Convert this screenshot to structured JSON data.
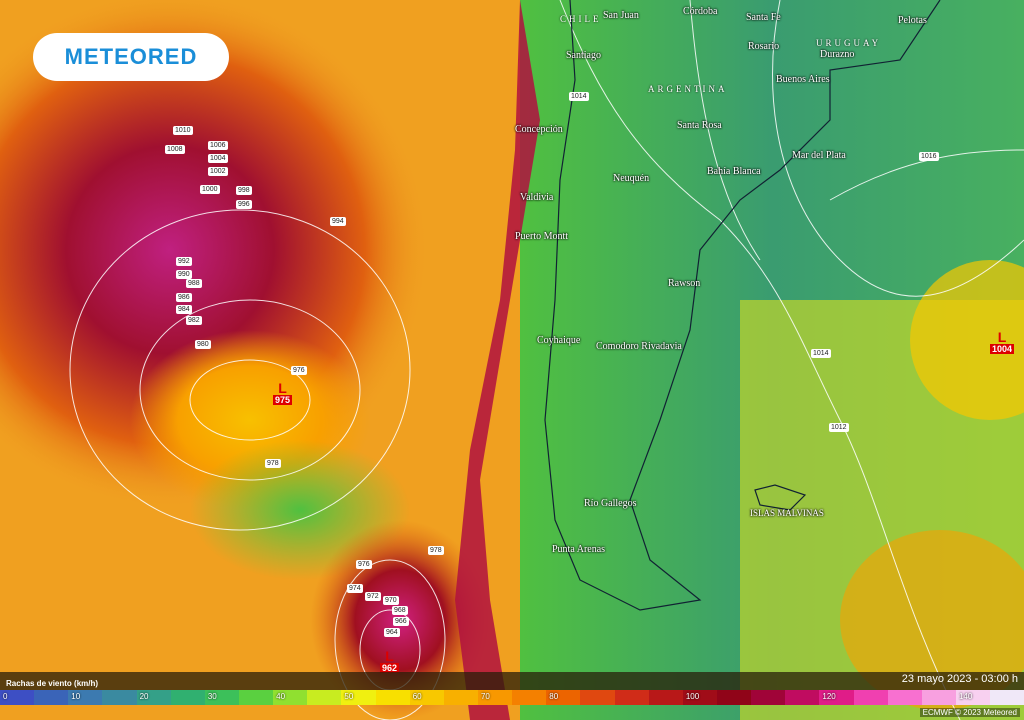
{
  "brand": {
    "logo": "METEORED"
  },
  "map": {
    "countries": [
      "CHILE",
      "ARGENTINA",
      "URUGUAY"
    ],
    "cities": [
      "San Juan",
      "Córdoba",
      "Santa Fe",
      "Pelotas",
      "Santiago",
      "Rosario",
      "Durazno",
      "Buenos Aires",
      "Concepción",
      "Santa Rosa",
      "Mar del Plata",
      "Neuquén",
      "Bahía Blanca",
      "Valdivia",
      "Puerto Montt",
      "Rawson",
      "Coyhaique",
      "Comodoro Rivadavia",
      "Río Gallegos",
      "Punta Arenas",
      "ISLAS MALVINAS"
    ],
    "isobars": [
      "1010",
      "1008",
      "1006",
      "1004",
      "1002",
      "1000",
      "998",
      "996",
      "994",
      "992",
      "990",
      "988",
      "986",
      "984",
      "982",
      "980",
      "976",
      "978",
      "978",
      "976",
      "974",
      "972",
      "970",
      "968",
      "966",
      "964",
      "1014",
      "1016",
      "1014",
      "1012"
    ],
    "lows": [
      {
        "symbol": "L",
        "value": "975"
      },
      {
        "symbol": "L",
        "value": "1004"
      },
      {
        "symbol": "L",
        "value": "962"
      }
    ]
  },
  "legend": {
    "title": "Rachas de viento (km/h)",
    "datetime": "23 mayo 2023 - 03:00 h",
    "labels": [
      "0",
      "10",
      "20",
      "30",
      "40",
      "50",
      "60",
      "70",
      "80",
      "100",
      "120",
      "140"
    ],
    "colors": [
      "#3d4fc4",
      "#3a64b8",
      "#3c7ab0",
      "#3a8aa0",
      "#34a088",
      "#30b070",
      "#3cc05a",
      "#5ad040",
      "#90e030",
      "#c8ec20",
      "#f0f010",
      "#f8e000",
      "#f8c800",
      "#f8b000",
      "#f89800",
      "#f48000",
      "#ec6400",
      "#e04810",
      "#d02c18",
      "#b81818",
      "#a00c18",
      "#900418",
      "#a00438",
      "#c00c60",
      "#e01c88",
      "#f040b0",
      "#f870d0",
      "#f8a0e0",
      "#f8d0f0",
      "#f0e8f8"
    ],
    "credit": "ECMWF © 2023 Meteored"
  }
}
